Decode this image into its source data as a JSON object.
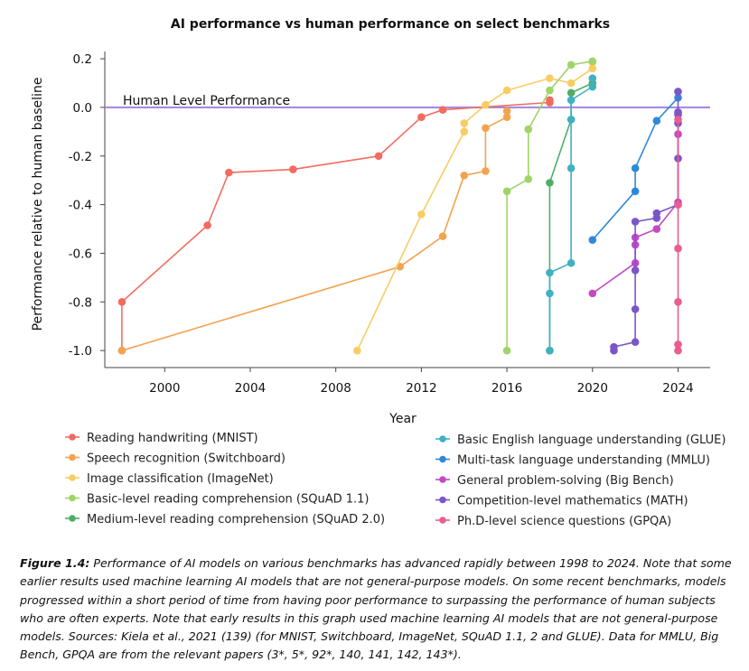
{
  "chart_data": {
    "type": "line",
    "title": "AI performance vs human performance on select benchmarks",
    "xlabel": "Year",
    "ylabel": "Performance relative to human baseline",
    "xlim": [
      1997.2,
      2025.5
    ],
    "ylim": [
      -1.07,
      0.23
    ],
    "xticks": [
      "2000",
      "2004",
      "2008",
      "2012",
      "2016",
      "2020",
      "2024"
    ],
    "yticks": [
      "0.2",
      "0.0",
      "-0.2",
      "-0.4",
      "-0.6",
      "-0.8",
      "-1.0"
    ],
    "reference_line": {
      "y": 0.0,
      "label": "Human Level Performance",
      "color": "#a78bdf"
    },
    "grid": false,
    "legend_position": "bottom",
    "series": [
      {
        "name": "Reading handwriting (MNIST)",
        "color": "#f36b5f",
        "x": [
          1998,
          1998,
          2002,
          2003,
          2006,
          2010,
          2012,
          2013,
          2018,
          2018
        ],
        "y": [
          -1.0,
          -0.8,
          -0.485,
          -0.268,
          -0.255,
          -0.2,
          -0.04,
          -0.01,
          0.02,
          0.03
        ]
      },
      {
        "name": "Speech recognition (Switchboard)",
        "color": "#f3a34f",
        "x": [
          1998,
          2011,
          2013,
          2014,
          2015,
          2015,
          2016,
          2016
        ],
        "y": [
          -1.0,
          -0.655,
          -0.53,
          -0.28,
          -0.262,
          -0.085,
          -0.04,
          -0.015
        ]
      },
      {
        "name": "Image classification (ImageNet)",
        "color": "#f8cc64",
        "x": [
          2009,
          2012,
          2014,
          2014,
          2015,
          2016,
          2018,
          2019,
          2020,
          2020
        ],
        "y": [
          -1.0,
          -0.44,
          -0.1,
          -0.065,
          0.01,
          0.07,
          0.12,
          0.1,
          0.16,
          0.185
        ]
      },
      {
        "name": "Basic-level reading comprehension (SQuAD 1.1)",
        "color": "#9fd468",
        "x": [
          2016,
          2016,
          2017,
          2017,
          2018,
          2019,
          2020
        ],
        "y": [
          -1.0,
          -0.345,
          -0.295,
          -0.09,
          0.07,
          0.175,
          0.19
        ]
      },
      {
        "name": "Medium-level reading comprehension (SQuAD 2.0)",
        "color": "#4fae66",
        "x": [
          2018,
          2018,
          2019,
          2019,
          2020
        ],
        "y": [
          -1.0,
          -0.31,
          -0.05,
          0.06,
          0.1
        ]
      },
      {
        "name": "Basic English language understanding (GLUE)",
        "color": "#3fb1c3",
        "x": [
          2018,
          2018,
          2018,
          2019,
          2019,
          2019,
          2019,
          2020,
          2020
        ],
        "y": [
          -1.0,
          -0.765,
          -0.68,
          -0.64,
          -0.25,
          -0.05,
          0.03,
          0.085,
          0.12
        ]
      },
      {
        "name": "Multi-task language understanding (MMLU)",
        "color": "#2e89d8",
        "x": [
          2020,
          2022,
          2022,
          2023,
          2024
        ],
        "y": [
          -0.545,
          -0.345,
          -0.25,
          -0.055,
          0.04
        ]
      },
      {
        "name": "General problem-solving (Big Bench)",
        "color": "#c449c4",
        "x": [
          2020,
          2022,
          2022,
          2022,
          2023,
          2024,
          2024,
          2024
        ],
        "y": [
          -0.765,
          -0.64,
          -0.565,
          -0.535,
          -0.5,
          -0.39,
          -0.11,
          -0.02
        ]
      },
      {
        "name": "Competition-level mathematics (MATH)",
        "color": "#7b56c8",
        "x": [
          2021,
          2021,
          2022,
          2022,
          2022,
          2022,
          2023,
          2023,
          2024,
          2024,
          2024,
          2024,
          2024,
          2024
        ],
        "y": [
          -1.0,
          -0.985,
          -0.965,
          -0.83,
          -0.67,
          -0.47,
          -0.455,
          -0.435,
          -0.4,
          -0.21,
          -0.065,
          -0.02,
          -0.03,
          0.065
        ]
      },
      {
        "name": "Ph.D-level science questions (GPQA)",
        "color": "#ea5d8e",
        "x": [
          2024,
          2024,
          2024,
          2024,
          2024,
          2024
        ],
        "y": [
          -1.0,
          -0.975,
          -0.8,
          -0.58,
          -0.4,
          -0.05
        ]
      }
    ]
  },
  "caption": {
    "label": "Figure 1.4:",
    "text": "Performance of AI models on various benchmarks has advanced rapidly between 1998 to 2024. Note that some earlier results used machine learning AI models that are not general-purpose models. On some recent benchmarks, models progressed within a short period of time from having poor performance to surpassing the performance of human subjects who are often experts. Note that early results in this graph used machine learning AI models that are not general-purpose models. Sources: Kiela et al., 2021 (139) (for MNIST, Switchboard, ImageNet, SQuAD 1.1, 2 and GLUE). Data for MMLU, Big Bench, GPQA are from the relevant papers (3*, 5*, 92*, 140, 141, 142, 143*)."
  }
}
